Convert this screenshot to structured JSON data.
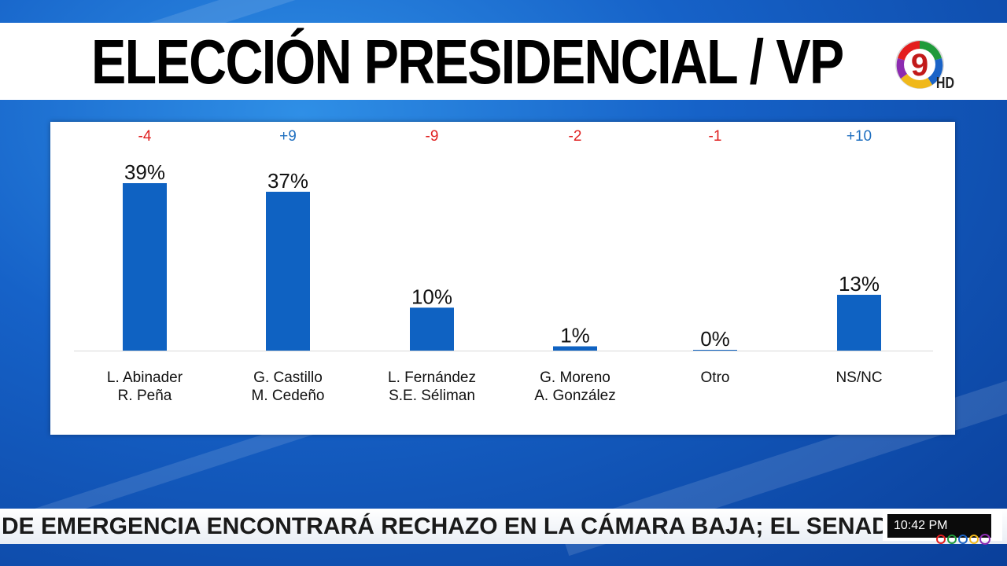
{
  "title": "ELECCIÓN PRESIDENCIAL / VP",
  "logo": {
    "badge": "9",
    "hd": "HD"
  },
  "chart_data": {
    "type": "bar",
    "categories": [
      [
        "L. Abinader",
        "R. Peña"
      ],
      [
        "G. Castillo",
        "M. Cedeño"
      ],
      [
        "L. Fernández",
        "S.E. Séliman"
      ],
      [
        "G. Moreno",
        "A. González"
      ],
      [
        "Otro"
      ],
      [
        "NS/NC"
      ]
    ],
    "values": [
      39,
      37,
      10,
      1,
      0,
      13
    ],
    "value_labels": [
      "39%",
      "37%",
      "10%",
      "1%",
      "0%",
      "13%"
    ],
    "changes": [
      "-4",
      "+9",
      "-9",
      "-2",
      "-1",
      "+10"
    ],
    "change_colors": [
      "#e02020",
      "#1f6fc0",
      "#e02020",
      "#e02020",
      "#e02020",
      "#1f6fc0"
    ],
    "bar_color": "#0f62c2",
    "ylim": [
      0,
      40
    ],
    "grid": false,
    "legend": "none"
  },
  "ticker": {
    "text": "DE EMERGENCIA ENCONTRARÁ RECHAZO EN LA CÁMARA BAJA; EL SENADO LO DI"
  },
  "clock": {
    "time": "10:42 PM"
  },
  "colors": {
    "background": "#1662c8",
    "panel": "#ffffff"
  }
}
